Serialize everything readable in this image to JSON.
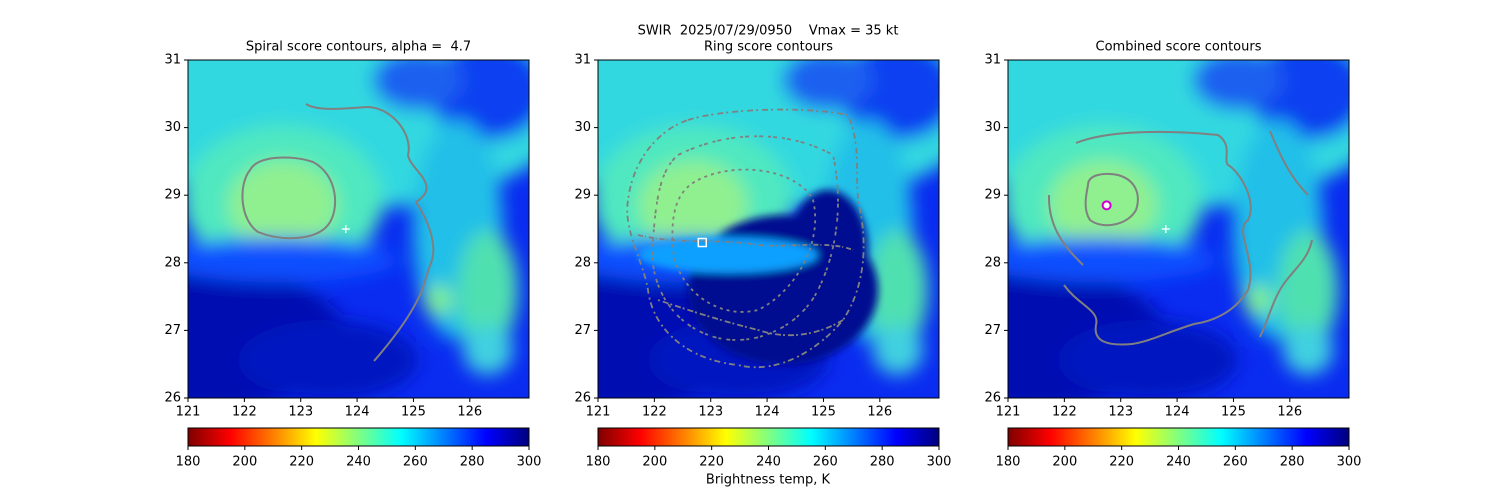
{
  "title": "SWIR  2025/07/29/0950    Vmax = 35 kt",
  "colorbar_label": "Brightness temp, K",
  "chart_data": [
    {
      "type": "image",
      "title": "Spiral score contours, alpha =  4.7",
      "xlim": [
        121,
        127.05
      ],
      "ylim": [
        26,
        31
      ],
      "xticks": [
        121,
        122,
        123,
        124,
        125,
        126
      ],
      "yticks": [
        26,
        27,
        28,
        29,
        30,
        31
      ],
      "clim": [
        180,
        300
      ],
      "cticks": [
        180,
        200,
        220,
        240,
        260,
        280,
        300
      ],
      "markers": [
        {
          "x": 123.8,
          "y": 28.5,
          "shape": "plus",
          "color": "#ffffff"
        }
      ]
    },
    {
      "type": "image",
      "title": "Ring score contours",
      "xlim": [
        121,
        127.05
      ],
      "ylim": [
        26,
        31
      ],
      "xticks": [
        121,
        122,
        123,
        124,
        125,
        126
      ],
      "yticks": [
        26,
        27,
        28,
        29,
        30,
        31
      ],
      "clim": [
        180,
        300
      ],
      "cticks": [
        180,
        200,
        220,
        240,
        260,
        280,
        300
      ],
      "markers": [
        {
          "x": 122.85,
          "y": 28.3,
          "shape": "square",
          "color": "#ffffff"
        }
      ]
    },
    {
      "type": "image",
      "title": "Combined score contours",
      "xlim": [
        121,
        127.05
      ],
      "ylim": [
        26,
        31
      ],
      "xticks": [
        121,
        122,
        123,
        124,
        125,
        126
      ],
      "yticks": [
        26,
        27,
        28,
        29,
        30,
        31
      ],
      "clim": [
        180,
        300
      ],
      "cticks": [
        180,
        200,
        220,
        240,
        260,
        280,
        300
      ],
      "markers": [
        {
          "x": 123.8,
          "y": 28.5,
          "shape": "plus",
          "color": "#ffffff"
        },
        {
          "x": 122.75,
          "y": 28.85,
          "shape": "circle",
          "color": "#cc00cc"
        }
      ]
    }
  ]
}
